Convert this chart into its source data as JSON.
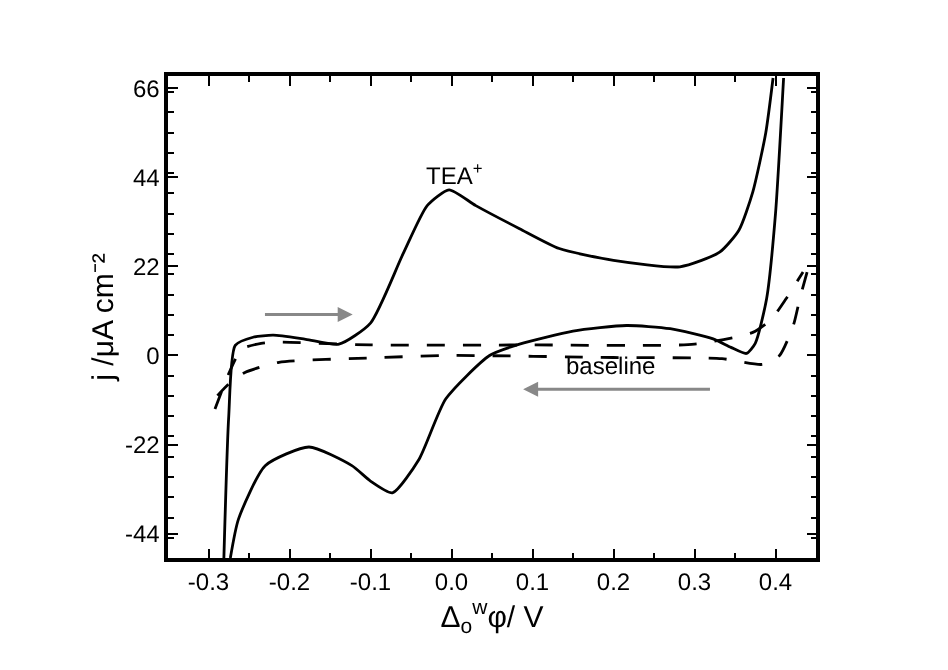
{
  "chart_data": {
    "type": "line",
    "xlabel": "Δ$_{o}$$^{w}$φ/ V",
    "ylabel": "j /μA cm⁻²",
    "xlim": [
      -0.35,
      0.45
    ],
    "xticks": [
      -0.3,
      -0.2,
      -0.1,
      {
        "value": 0,
        "label": "0.0"
      },
      0.1,
      0.2,
      0.3,
      0.4
    ],
    "ylim": [
      -50,
      69
    ],
    "yticks": [
      -44,
      -22,
      0,
      22,
      44,
      66
    ],
    "marker": "none",
    "series": [
      {
        "color": "#000000",
        "line_style": "solid",
        "x": [
          -0.281,
          -0.275,
          -0.267,
          -0.245,
          -0.22,
          -0.18,
          -0.139,
          -0.1,
          -0.06,
          -0.03,
          -0.003,
          0.03,
          0.084,
          0.133,
          0.2,
          0.282,
          0.331,
          0.355,
          0.372,
          0.388,
          0.397
        ],
        "values": [
          -50,
          -15,
          2.5,
          4.5,
          5,
          4,
          2.8,
          8,
          25,
          37,
          40.9,
          37,
          31.3,
          26.4,
          23.5,
          21.9,
          25.5,
          31,
          40.4,
          55,
          68.5
        ]
      },
      {
        "color": "#000000",
        "line_style": "solid",
        "x": [
          0.41,
          0.4,
          0.389,
          0.375,
          0.364,
          0.345,
          0.323,
          0.27,
          0.216,
          0.15,
          0.084,
          0.047,
          -0.007,
          -0.04,
          -0.073,
          -0.1,
          -0.123,
          -0.176,
          -0.23,
          -0.263,
          -0.273
        ],
        "values": [
          68.5,
          35,
          14,
          3,
          0.5,
          2,
          4.1,
          6.6,
          7.4,
          6,
          2.8,
          0,
          -10.7,
          -25.6,
          -33.9,
          -31,
          -27.2,
          -22.6,
          -27.2,
          -40.4,
          -50
        ]
      },
      {
        "color": "#000000",
        "line_style": "dashed",
        "x": [
          -0.292,
          -0.275,
          -0.259,
          -0.235,
          -0.213,
          -0.1,
          0.1,
          0.3,
          0.372,
          0.395,
          0.413,
          0.434
        ],
        "values": [
          -13.2,
          -4.5,
          1.6,
          3,
          3.3,
          2.6,
          2.6,
          2.8,
          5.7,
          9,
          14,
          20.6
        ]
      },
      {
        "color": "#000000",
        "line_style": "dashed",
        "x": [
          0.439,
          0.43,
          0.422,
          0.405,
          0.384,
          0.334,
          0.2,
          0.0,
          -0.1,
          -0.213,
          -0.255,
          -0.275,
          -0.289
        ],
        "values": [
          20.6,
          14,
          7.4,
          0,
          -2.2,
          -0.8,
          -0.5,
          0,
          -0.6,
          -1.7,
          -4.2,
          -7,
          -9.9
        ]
      }
    ],
    "annotations": [
      "TEA$^{+}$",
      "baseline"
    ]
  }
}
